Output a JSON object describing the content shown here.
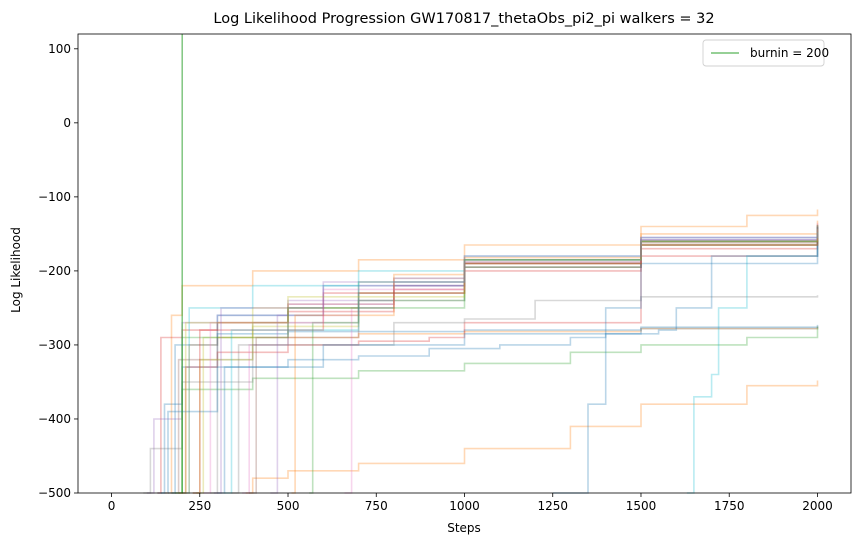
{
  "chart_data": {
    "type": "line",
    "title": "Log Likelihood Progression GW170817_thetaObs_pi2_pi walkers = 32",
    "xlabel": "Steps",
    "ylabel": "Log Likelihood",
    "xlim": [
      -95,
      2095
    ],
    "ylim": [
      -500,
      120
    ],
    "xticks": [
      0,
      250,
      500,
      750,
      1000,
      1250,
      1500,
      1750,
      2000
    ],
    "yticks": [
      -500,
      -400,
      -300,
      -200,
      -100,
      0,
      100
    ],
    "grid": false,
    "legend_position": "top-right",
    "burnin": {
      "label": "burnin = 200",
      "x": 200,
      "color": "#2ca02c"
    },
    "walker_alpha": 0.3,
    "palette": [
      "#1f77b4",
      "#ff7f0e",
      "#2ca02c",
      "#d62728",
      "#9467bd",
      "#8c564b",
      "#e377c2",
      "#7f7f7f",
      "#bcbd22",
      "#17becf"
    ],
    "series": [
      {
        "color_index": 0,
        "points": [
          [
            130,
            -500
          ],
          [
            150,
            -380
          ],
          [
            200,
            -330
          ],
          [
            300,
            -285
          ],
          [
            500,
            -282
          ],
          [
            1000,
            -280
          ],
          [
            1500,
            -278
          ],
          [
            2000,
            -276
          ]
        ]
      },
      {
        "color_index": 1,
        "points": [
          [
            380,
            -500
          ],
          [
            400,
            -480
          ],
          [
            500,
            -470
          ],
          [
            700,
            -460
          ],
          [
            1000,
            -440
          ],
          [
            1300,
            -410
          ],
          [
            1500,
            -380
          ],
          [
            1800,
            -355
          ],
          [
            2000,
            -348
          ]
        ]
      },
      {
        "color_index": 1,
        "points": [
          [
            150,
            -500
          ],
          [
            170,
            -260
          ],
          [
            200,
            -220
          ],
          [
            400,
            -200
          ],
          [
            700,
            -185
          ],
          [
            1000,
            -165
          ],
          [
            1500,
            -140
          ],
          [
            1800,
            -125
          ],
          [
            2000,
            -117
          ]
        ]
      },
      {
        "color_index": 1,
        "points": [
          [
            200,
            -500
          ],
          [
            220,
            -300
          ],
          [
            300,
            -290
          ],
          [
            700,
            -285
          ],
          [
            1000,
            -282
          ],
          [
            1500,
            -278
          ],
          [
            2000,
            -275
          ]
        ]
      },
      {
        "color_index": 2,
        "points": [
          [
            170,
            -500
          ],
          [
            200,
            -360
          ],
          [
            400,
            -345
          ],
          [
            700,
            -335
          ],
          [
            1000,
            -325
          ],
          [
            1300,
            -310
          ],
          [
            1500,
            -300
          ],
          [
            1800,
            -290
          ],
          [
            2000,
            -275
          ]
        ]
      },
      {
        "color_index": 2,
        "points": [
          [
            560,
            -500
          ],
          [
            570,
            -270
          ],
          [
            700,
            -240
          ],
          [
            1000,
            -195
          ],
          [
            1500,
            -165
          ],
          [
            2000,
            -140
          ]
        ]
      },
      {
        "color_index": 3,
        "points": [
          [
            130,
            -500
          ],
          [
            140,
            -290
          ],
          [
            200,
            -280
          ],
          [
            300,
            -270
          ],
          [
            500,
            -255
          ],
          [
            800,
            -225
          ],
          [
            1000,
            -200
          ],
          [
            1500,
            -170
          ],
          [
            2000,
            -145
          ]
        ]
      },
      {
        "color_index": 3,
        "points": [
          [
            190,
            -500
          ],
          [
            210,
            -330
          ],
          [
            300,
            -310
          ],
          [
            500,
            -300
          ],
          [
            700,
            -295
          ],
          [
            900,
            -290
          ],
          [
            1000,
            -270
          ],
          [
            1500,
            -180
          ],
          [
            2000,
            -150
          ]
        ]
      },
      {
        "color_index": 4,
        "points": [
          [
            100,
            -500
          ],
          [
            120,
            -400
          ],
          [
            200,
            -270
          ],
          [
            300,
            -260
          ],
          [
            500,
            -240
          ],
          [
            800,
            -215
          ],
          [
            1000,
            -190
          ],
          [
            1500,
            -160
          ],
          [
            2000,
            -140
          ]
        ]
      },
      {
        "color_index": 5,
        "points": [
          [
            170,
            -500
          ],
          [
            190,
            -320
          ],
          [
            300,
            -270
          ],
          [
            500,
            -245
          ],
          [
            800,
            -220
          ],
          [
            1000,
            -195
          ],
          [
            1500,
            -165
          ],
          [
            2000,
            -148
          ]
        ]
      },
      {
        "color_index": 6,
        "points": [
          [
            660,
            -500
          ],
          [
            680,
            -250
          ],
          [
            800,
            -220
          ],
          [
            1000,
            -190
          ],
          [
            1500,
            -160
          ],
          [
            2000,
            -138
          ]
        ]
      },
      {
        "color_index": 6,
        "points": [
          [
            370,
            -500
          ],
          [
            390,
            -300
          ],
          [
            500,
            -245
          ],
          [
            800,
            -210
          ],
          [
            1000,
            -185
          ],
          [
            1500,
            -155
          ],
          [
            2000,
            -135
          ]
        ]
      },
      {
        "color_index": 7,
        "points": [
          [
            90,
            -500
          ],
          [
            110,
            -440
          ],
          [
            200,
            -350
          ],
          [
            400,
            -300
          ],
          [
            800,
            -270
          ],
          [
            1000,
            -265
          ],
          [
            1200,
            -240
          ],
          [
            1500,
            -235
          ],
          [
            2000,
            -233
          ]
        ]
      },
      {
        "color_index": 7,
        "points": [
          [
            280,
            -500
          ],
          [
            300,
            -320
          ],
          [
            400,
            -270
          ],
          [
            700,
            -240
          ],
          [
            1000,
            -195
          ],
          [
            1500,
            -165
          ],
          [
            2000,
            -150
          ]
        ]
      },
      {
        "color_index": 8,
        "points": [
          [
            240,
            -500
          ],
          [
            260,
            -290
          ],
          [
            400,
            -250
          ],
          [
            700,
            -215
          ],
          [
            1000,
            -190
          ],
          [
            1500,
            -160
          ],
          [
            2000,
            -138
          ]
        ]
      },
      {
        "color_index": 9,
        "points": [
          [
            1630,
            -500
          ],
          [
            1650,
            -370
          ],
          [
            1700,
            -340
          ],
          [
            1720,
            -250
          ],
          [
            1800,
            -180
          ],
          [
            2000,
            -140
          ]
        ]
      },
      {
        "color_index": 0,
        "points": [
          [
            300,
            -500
          ],
          [
            320,
            -330
          ],
          [
            500,
            -320
          ],
          [
            700,
            -315
          ],
          [
            900,
            -305
          ],
          [
            1100,
            -300
          ],
          [
            1300,
            -290
          ],
          [
            1400,
            -285
          ],
          [
            1550,
            -280
          ],
          [
            1600,
            -250
          ],
          [
            1700,
            -180
          ],
          [
            2000,
            -150
          ]
        ]
      },
      {
        "color_index": 0,
        "points": [
          [
            1250,
            -500
          ],
          [
            1350,
            -380
          ],
          [
            1400,
            -250
          ],
          [
            1500,
            -190
          ],
          [
            2000,
            -155
          ]
        ]
      },
      {
        "color_index": 0,
        "points": [
          [
            160,
            -500
          ],
          [
            180,
            -300
          ],
          [
            300,
            -260
          ],
          [
            600,
            -220
          ],
          [
            1000,
            -185
          ],
          [
            1500,
            -160
          ],
          [
            2000,
            -140
          ]
        ]
      },
      {
        "color_index": 9,
        "points": [
          [
            200,
            -500
          ],
          [
            220,
            -250
          ],
          [
            400,
            -220
          ],
          [
            700,
            -200
          ],
          [
            1000,
            -180
          ],
          [
            1500,
            -158
          ],
          [
            2000,
            -142
          ]
        ]
      },
      {
        "color_index": 8,
        "points": [
          [
            230,
            -500
          ],
          [
            250,
            -320
          ],
          [
            400,
            -275
          ],
          [
            700,
            -230
          ],
          [
            1000,
            -190
          ],
          [
            1500,
            -165
          ],
          [
            2000,
            -145
          ]
        ]
      },
      {
        "color_index": 4,
        "points": [
          [
            450,
            -500
          ],
          [
            470,
            -260
          ],
          [
            700,
            -220
          ],
          [
            1000,
            -185
          ],
          [
            1500,
            -158
          ],
          [
            2000,
            -142
          ]
        ]
      },
      {
        "color_index": 7,
        "points": [
          [
            340,
            -500
          ],
          [
            360,
            -300
          ],
          [
            500,
            -250
          ],
          [
            800,
            -210
          ],
          [
            1000,
            -188
          ],
          [
            1500,
            -160
          ],
          [
            2000,
            -146
          ]
        ]
      },
      {
        "color_index": 1,
        "points": [
          [
            510,
            -500
          ],
          [
            520,
            -260
          ],
          [
            800,
            -205
          ],
          [
            1000,
            -182
          ],
          [
            1500,
            -150
          ],
          [
            2000,
            -132
          ]
        ]
      },
      {
        "color_index": 2,
        "points": [
          [
            180,
            -500
          ],
          [
            200,
            -290
          ],
          [
            500,
            -250
          ],
          [
            1000,
            -185
          ],
          [
            1500,
            -160
          ],
          [
            2000,
            -138
          ]
        ]
      },
      {
        "color_index": 3,
        "points": [
          [
            230,
            -500
          ],
          [
            250,
            -280
          ],
          [
            600,
            -230
          ],
          [
            1000,
            -190
          ],
          [
            1500,
            -165
          ],
          [
            2000,
            -150
          ]
        ]
      },
      {
        "color_index": 5,
        "points": [
          [
            390,
            -500
          ],
          [
            410,
            -290
          ],
          [
            700,
            -230
          ],
          [
            1000,
            -190
          ],
          [
            1500,
            -162
          ],
          [
            2000,
            -140
          ]
        ]
      },
      {
        "color_index": 6,
        "points": [
          [
            260,
            -500
          ],
          [
            280,
            -270
          ],
          [
            600,
            -225
          ],
          [
            1000,
            -188
          ],
          [
            1500,
            -158
          ],
          [
            2000,
            -144
          ]
        ]
      },
      {
        "color_index": 0,
        "points": [
          [
            140,
            -500
          ],
          [
            160,
            -390
          ],
          [
            300,
            -330
          ],
          [
            600,
            -300
          ],
          [
            1000,
            -285
          ],
          [
            1500,
            -276
          ],
          [
            2000,
            -273
          ]
        ]
      },
      {
        "color_index": 9,
        "points": [
          [
            320,
            -500
          ],
          [
            340,
            -280
          ],
          [
            700,
            -215
          ],
          [
            1000,
            -185
          ],
          [
            1500,
            -155
          ],
          [
            2000,
            -148
          ]
        ]
      },
      {
        "color_index": 8,
        "points": [
          [
            190,
            -500
          ],
          [
            210,
            -270
          ],
          [
            500,
            -235
          ],
          [
            1000,
            -185
          ],
          [
            1500,
            -160
          ],
          [
            2000,
            -143
          ]
        ]
      },
      {
        "color_index": 4,
        "points": [
          [
            290,
            -500
          ],
          [
            310,
            -250
          ],
          [
            600,
            -215
          ],
          [
            1000,
            -180
          ],
          [
            1500,
            -155
          ],
          [
            2000,
            -137
          ]
        ]
      }
    ]
  }
}
